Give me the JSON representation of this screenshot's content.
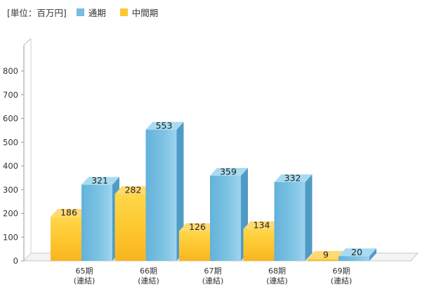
{
  "legend": {
    "unit_label": "[単位：百万円]",
    "series1_label": "通期",
    "series2_label": "中間期"
  },
  "colors": {
    "annual": "#76bde0",
    "interim": "#fdc733",
    "axis": "#999999"
  },
  "chart_data": {
    "type": "bar",
    "style": "3d grouped column",
    "categories": [
      [
        "65期",
        "(連結)"
      ],
      [
        "66期",
        "(連結)"
      ],
      [
        "67期",
        "(連結)"
      ],
      [
        "68期",
        "(連結)"
      ],
      [
        "69期",
        "(連結)"
      ]
    ],
    "series": [
      {
        "name": "中間期",
        "values": [
          186,
          282,
          126,
          134,
          9
        ]
      },
      {
        "name": "通期",
        "values": [
          321,
          553,
          359,
          332,
          20
        ]
      }
    ],
    "unit": "百万円",
    "yticks": [
      0,
      100,
      200,
      300,
      400,
      500,
      600,
      700,
      800
    ],
    "ylim": [
      0,
      800
    ],
    "grid": false,
    "legend_position": "top-left"
  }
}
